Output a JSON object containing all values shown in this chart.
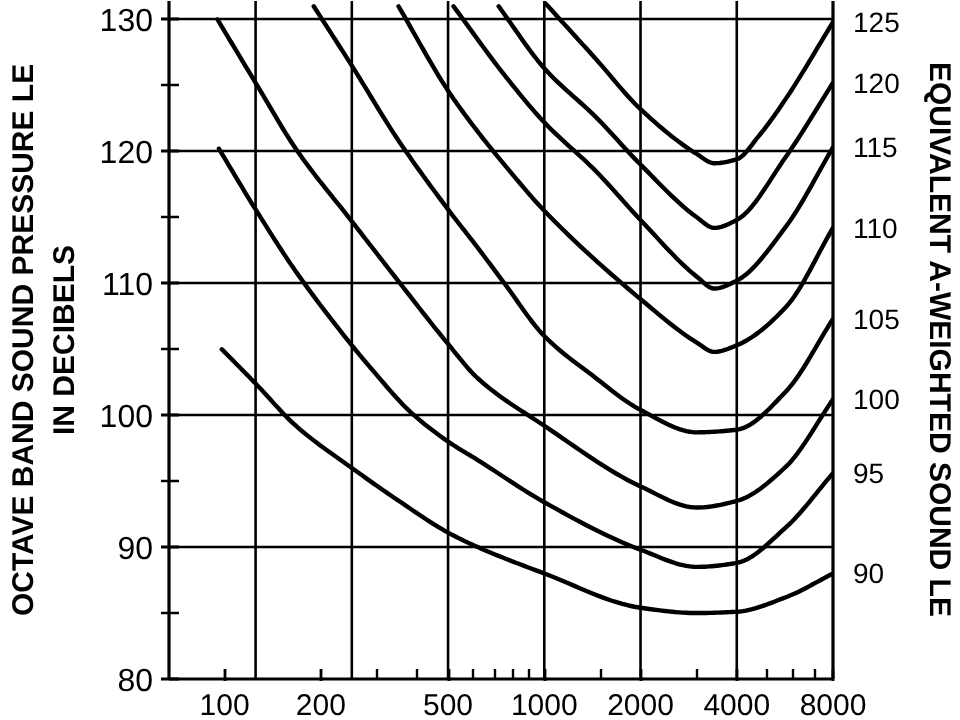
{
  "chart_data": {
    "type": "line",
    "ylabel": "OCTAVE BAND SOUND PRESSURE LE\nIN DECIBELS",
    "y2label": "EQUIVALENT A-WEIGHTED SOUND LE",
    "log": "x",
    "xlim": [
      67,
      8000
    ],
    "xticks": [
      100,
      200,
      {
        "value": 300,
        "label": null
      },
      {
        "value": 400,
        "label": null
      },
      500,
      {
        "value": 600,
        "label": null
      },
      {
        "value": 700,
        "label": null
      },
      {
        "value": 800,
        "label": null
      },
      {
        "value": 900,
        "label": null
      },
      1000,
      {
        "value": 1500,
        "label": null
      },
      2000,
      {
        "value": 3000,
        "label": null
      },
      4000,
      {
        "value": 5000,
        "label": null
      },
      {
        "value": 6000,
        "label": null
      },
      {
        "value": 7000,
        "label": null
      },
      8000
    ],
    "ylim": [
      80,
      131.4
    ],
    "yticks": [
      80,
      {
        "value": 85,
        "label": null
      },
      90,
      {
        "value": 95,
        "label": null
      },
      100,
      {
        "value": 105,
        "label": null
      },
      110,
      {
        "value": 115,
        "label": null
      },
      120,
      {
        "value": 125,
        "label": null
      },
      130
    ],
    "grid": "y",
    "ref_lines": [
      {
        "axis": "x",
        "value": 125,
        "color": "#000000"
      },
      {
        "axis": "x",
        "value": 250,
        "color": "#000000"
      },
      {
        "axis": "x",
        "value": 500,
        "color": "#000000"
      },
      {
        "axis": "x",
        "value": 1000,
        "color": "#000000"
      },
      {
        "axis": "x",
        "value": 2000,
        "color": "#000000"
      },
      {
        "axis": "x",
        "value": 4000,
        "color": "#000000"
      }
    ],
    "series": [
      {
        "name": "90",
        "color": "#000000",
        "x": [
          98,
          125,
          167,
          250,
          346,
          500,
          619,
          1000,
          2000,
          3000,
          4000,
          5700,
          8000
        ],
        "values": [
          105.0,
          102.4,
          99.2,
          96.0,
          93.6,
          91.1,
          90.0,
          88.0,
          85.4,
          85.0,
          85.1,
          86.2,
          88.0
        ]
      },
      {
        "name": "95",
        "color": "#000000",
        "x": [
          96,
          125,
          167,
          250,
          286,
          383,
          500,
          619,
          1000,
          2000,
          3000,
          4000,
          5700,
          8000
        ],
        "values": [
          120.2,
          115.6,
          110.9,
          105.3,
          103.6,
          100.2,
          98.0,
          96.6,
          93.4,
          89.8,
          88.5,
          88.8,
          91.5,
          95.6
        ]
      },
      {
        "name": "100",
        "color": "#000000",
        "x": [
          95,
          125,
          167,
          250,
          346,
          500,
          619,
          1000,
          2000,
          3000,
          4000,
          5700,
          8000
        ],
        "values": [
          130.0,
          125.2,
          120.2,
          114.7,
          110.3,
          105.4,
          102.8,
          99.2,
          94.6,
          93.0,
          93.5,
          96.1,
          101.2
        ]
      },
      {
        "name": "105",
        "color": "#000000",
        "x": [
          190,
          250,
          346,
          500,
          619,
          750,
          1000,
          1417,
          2000,
          3000,
          4000,
          5700,
          8000
        ],
        "values": [
          131.0,
          126.5,
          121.0,
          115.6,
          112.7,
          110.0,
          106.0,
          103.0,
          100.4,
          98.7,
          98.9,
          101.8,
          107.3
        ]
      },
      {
        "name": "110",
        "color": "#000000",
        "x": [
          350,
          500,
          619,
          750,
          1000,
          2000,
          3000,
          3400,
          4000,
          5700,
          8000
        ],
        "values": [
          131.0,
          124.6,
          121.5,
          119.0,
          115.5,
          108.8,
          105.5,
          104.8,
          105.3,
          108.2,
          114.2
        ]
      },
      {
        "name": "115",
        "color": "#000000",
        "x": [
          520,
          750,
          1000,
          1450,
          2000,
          3000,
          3400,
          4000,
          5700,
          8000
        ],
        "values": [
          131.0,
          125.8,
          122.2,
          118.5,
          114.8,
          110.5,
          109.6,
          110.2,
          114.3,
          120.3
        ]
      },
      {
        "name": "120",
        "color": "#000000",
        "x": [
          720,
          1000,
          1450,
          2000,
          3000,
          3400,
          4000,
          5700,
          8000
        ],
        "values": [
          131.0,
          126.3,
          122.6,
          119.0,
          115.0,
          114.2,
          114.8,
          119.6,
          125.2
        ]
      },
      {
        "name": "125",
        "color": "#000000",
        "x": [
          1010,
          1450,
          2000,
          3000,
          3400,
          4000,
          4700,
          5700,
          8000
        ],
        "values": [
          131.2,
          127.0,
          123.2,
          119.8,
          119.1,
          119.4,
          121.2,
          124.0,
          129.8
        ]
      }
    ]
  }
}
